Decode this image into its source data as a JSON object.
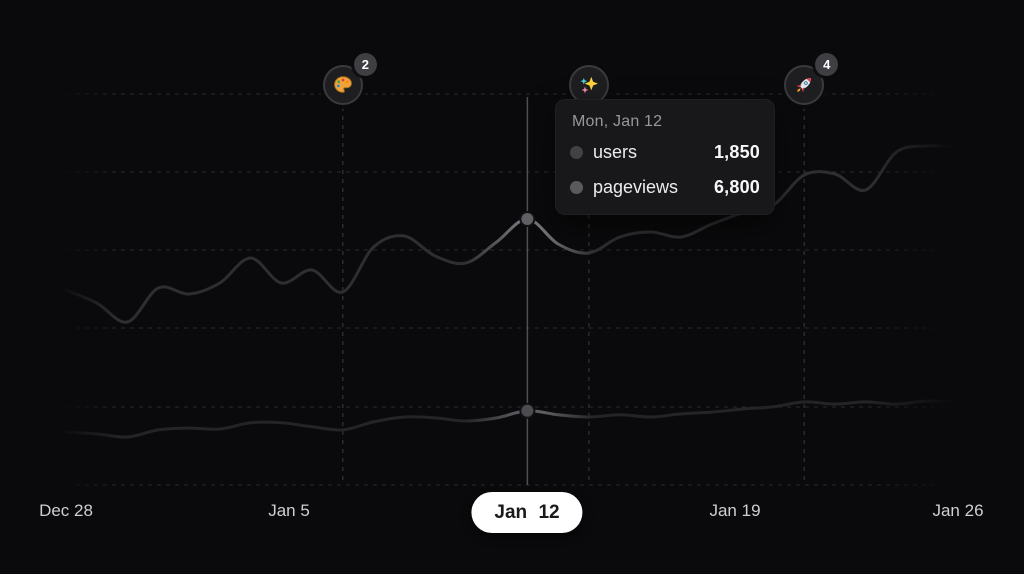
{
  "colors": {
    "background": "#0a0a0c",
    "pageviews_line": "#2e2e32",
    "users_line": "#242428",
    "pageviews_highlight": "#747479",
    "users_highlight": "#5c5c61",
    "pageviews_dot": "#616165",
    "users_dot": "#4c4c50",
    "tooltip_dot_users": "#414146",
    "tooltip_dot_pageviews": "#595a5e",
    "gridline": "#2a2a2e",
    "annotation_line": "#333338",
    "cursor_line": "#4f4f54",
    "pill_bg": "#ffffff",
    "pill_text": "#1a1a1d",
    "axis_label": "#cfcfd3",
    "badge_bg": "#3e3e43",
    "badge_text": "#ffffff"
  },
  "chart_data": {
    "type": "line",
    "title": "",
    "xlabel": "",
    "ylabel": "",
    "x_tick_labels": [
      "Dec 28",
      "Jan 5",
      "Jan 12",
      "Jan 19",
      "Jan 26"
    ],
    "days": 30,
    "grid": "dashed",
    "legend_position": "none",
    "series": [
      {
        "name": "users",
        "values": [
          1370,
          1330,
          1260,
          1420,
          1460,
          1440,
          1580,
          1580,
          1490,
          1420,
          1600,
          1710,
          1690,
          1620,
          1690,
          1850,
          1760,
          1710,
          1760,
          1710,
          1780,
          1820,
          1890,
          1940,
          2050,
          2000,
          2050,
          2000,
          2070,
          2050
        ]
      },
      {
        "name": "pageviews",
        "values": [
          3960,
          3440,
          2680,
          4040,
          3800,
          4240,
          5240,
          4240,
          4760,
          3880,
          5680,
          6120,
          5320,
          5040,
          5880,
          6800,
          5800,
          5440,
          6080,
          6280,
          6080,
          6600,
          7040,
          7360,
          8560,
          8600,
          7960,
          9480,
          9720,
          9680
        ]
      }
    ],
    "hovered_day": {
      "index": 15,
      "label": "Mon, Jan 12",
      "users": 1850,
      "pageviews": 6800
    },
    "annotations": [
      {
        "day_index": 9,
        "icon": "palette",
        "badge": "2"
      },
      {
        "day_index": 17,
        "icon": "sparkles",
        "badge": null
      },
      {
        "day_index": 24,
        "icon": "rocket",
        "badge": "4"
      }
    ]
  },
  "tooltip": {
    "title": "Mon, Jan 12",
    "rows": [
      {
        "label": "users",
        "value": "1,850"
      },
      {
        "label": "pageviews",
        "value": "6,800"
      }
    ]
  },
  "x_axis": {
    "labels": [
      {
        "text": "Dec 28",
        "selected": false
      },
      {
        "text": "Jan 5",
        "selected": false
      },
      {
        "text": "Jan 12",
        "selected": true
      },
      {
        "text": "Jan 19",
        "selected": false
      },
      {
        "text": "Jan 26",
        "selected": false
      }
    ]
  }
}
